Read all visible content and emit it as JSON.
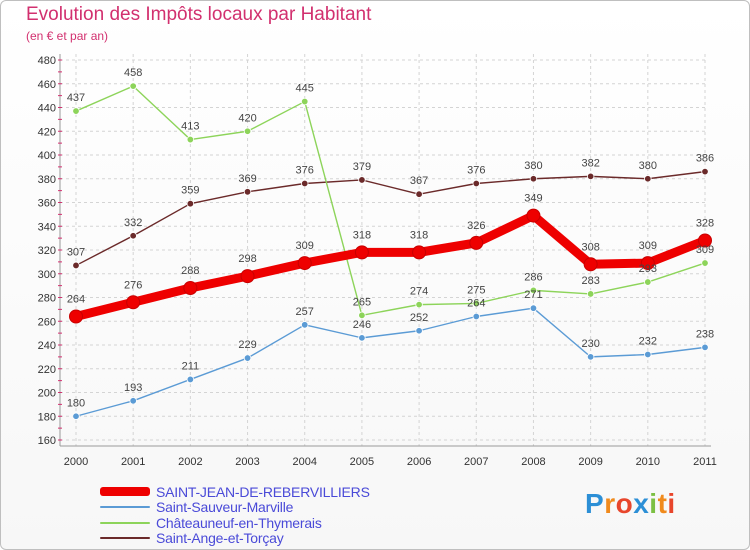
{
  "chart_data": {
    "type": "line",
    "title": "Evolution des Impôts locaux par Habitant",
    "subtitle": "(en € et par an)",
    "x": [
      "2000",
      "2001",
      "2002",
      "2003",
      "2004",
      "2005",
      "2006",
      "2007",
      "2008",
      "2009",
      "2010",
      "2011"
    ],
    "ylim": [
      160,
      480
    ],
    "yticks": [
      160,
      180,
      200,
      220,
      240,
      260,
      280,
      300,
      320,
      340,
      360,
      380,
      400,
      420,
      440,
      460,
      480
    ],
    "grid": true,
    "series": [
      {
        "name": "SAINT-JEAN-DE-REBERVILLIERS",
        "color": "#ee0000",
        "values": [
          264,
          276,
          288,
          298,
          309,
          318,
          318,
          326,
          349,
          308,
          309,
          328
        ]
      },
      {
        "name": "Saint-Sauveur-Marville",
        "color": "#5b9bd5",
        "values": [
          180,
          193,
          211,
          229,
          257,
          246,
          252,
          264,
          271,
          230,
          232,
          238
        ]
      },
      {
        "name": "Châteauneuf-en-Thymerais",
        "color": "#8dd45a",
        "values": [
          437,
          458,
          413,
          420,
          445,
          265,
          274,
          275,
          286,
          283,
          293,
          309
        ]
      },
      {
        "name": "Saint-Ange-et-Torçay",
        "color": "#6b2a2a",
        "values": [
          307,
          332,
          359,
          369,
          376,
          379,
          367,
          376,
          380,
          382,
          380,
          386
        ]
      }
    ]
  },
  "logo": {
    "letters": [
      "P",
      "r",
      "o",
      "x",
      "i",
      "t",
      "i"
    ]
  }
}
